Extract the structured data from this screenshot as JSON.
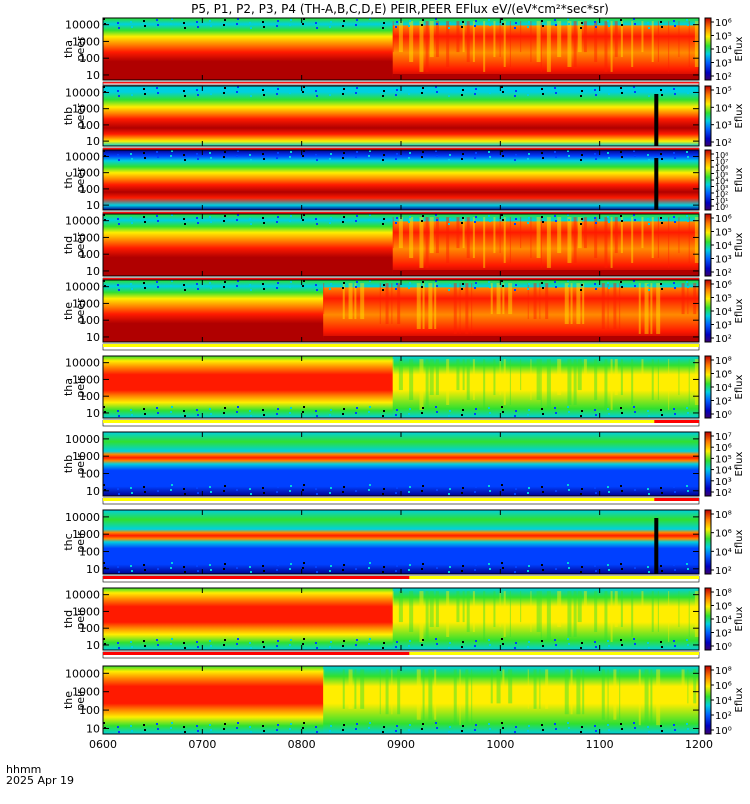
{
  "title": "P5, P1, P2, P3, P4 (TH-A,B,C,D,E) PEIR,PEER EFlux eV/(eV*cm²*sec*sr)",
  "footer": {
    "label1": "hhmm",
    "label2": "2025 Apr 19"
  },
  "chart_data": {
    "type": "heatmap",
    "x_ticks": [
      "0600",
      "0700",
      "0800",
      "0900",
      "1000",
      "1100",
      "1200"
    ],
    "x_range": [
      "0600",
      "1200"
    ],
    "y_scale": "log",
    "y_ticks": [
      "10",
      "100",
      "1000",
      "10000"
    ],
    "colorbar_title": "Eflux",
    "panels": [
      {
        "probe": "tha",
        "species": "peer",
        "cb_ticks": [
          "10²",
          "10³",
          "10⁴",
          "10⁵",
          "10⁶"
        ],
        "regime_change": "0855",
        "band": "electron",
        "black_mark": null
      },
      {
        "probe": "thb",
        "species": "peer",
        "cb_ticks": [
          "10²",
          "10³",
          "10⁴",
          "10⁵"
        ],
        "regime_change": null,
        "band": "electron-steady",
        "black_mark": "1133"
      },
      {
        "probe": "thc",
        "species": "peer",
        "cb_ticks": [
          "10⁰",
          "10¹",
          "10²",
          "10³",
          "10⁴",
          "10⁵",
          "10⁶",
          "10⁷",
          "10⁸"
        ],
        "regime_change": null,
        "band": "electron-noisy",
        "black_mark": "1133"
      },
      {
        "probe": "thd",
        "species": "peer",
        "cb_ticks": [
          "10²",
          "10³",
          "10⁴",
          "10⁵",
          "10⁶"
        ],
        "regime_change": "0855",
        "band": "electron",
        "black_mark": null
      },
      {
        "probe": "the",
        "species": "peer",
        "cb_ticks": [
          "10²",
          "10³",
          "10⁴",
          "10⁵",
          "10⁶"
        ],
        "regime_change": "0773",
        "band": "electron",
        "black_mark": null
      },
      {
        "probe": "tha",
        "species": "peir",
        "cb_ticks": [
          "10⁰",
          "10²",
          "10⁴",
          "10⁶",
          "10⁸"
        ],
        "regime_change": "0855",
        "band": "ion",
        "black_mark": null
      },
      {
        "probe": "thb",
        "species": "peir",
        "cb_ticks": [
          "10²",
          "10³",
          "10⁴",
          "10⁵",
          "10⁶",
          "10⁷"
        ],
        "regime_change": null,
        "band": "ion-line",
        "black_mark": null
      },
      {
        "probe": "thc",
        "species": "peir",
        "cb_ticks": [
          "10²",
          "10⁴",
          "10⁶",
          "10⁸"
        ],
        "regime_change": null,
        "band": "ion-line",
        "black_mark": "1133"
      },
      {
        "probe": "thd",
        "species": "peir",
        "cb_ticks": [
          "10⁰",
          "10²",
          "10⁴",
          "10⁶",
          "10⁸"
        ],
        "regime_change": "0855",
        "band": "ion",
        "black_mark": null
      },
      {
        "probe": "the",
        "species": "peir",
        "cb_ticks": [
          "10⁰",
          "10²",
          "10⁴",
          "10⁶",
          "10⁸"
        ],
        "regime_change": "0773",
        "band": "ion",
        "black_mark": null
      }
    ],
    "colors": {
      "darkred": "#b00000",
      "red": "#ff1a00",
      "orange": "#ff8a00",
      "yellow": "#ffee00",
      "green": "#30e030",
      "cyan": "#00d0e0",
      "blue": "#0040ff",
      "navy": "#000090",
      "bar_red": "#ff0000",
      "bar_yellow": "#ffff00"
    }
  }
}
